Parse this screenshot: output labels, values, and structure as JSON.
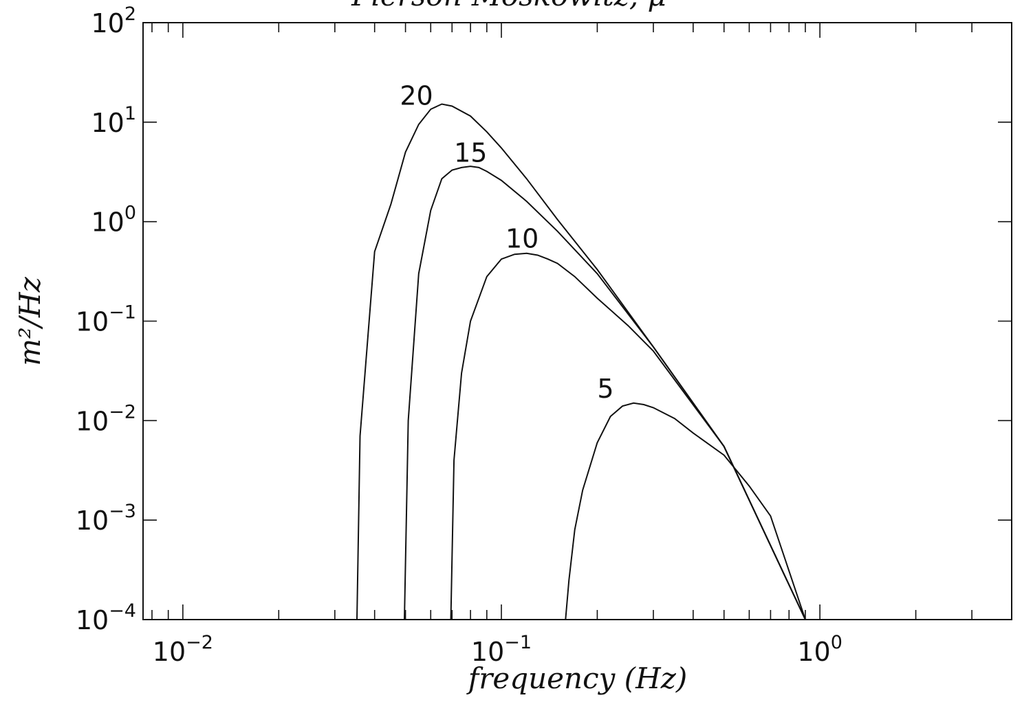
{
  "title_fragment": "Pierson-Moskowitz, μ",
  "chart_data": {
    "type": "line",
    "xlabel": "frequency (Hz)",
    "ylabel": "m²/Hz",
    "xscale": "log",
    "yscale": "log",
    "xlim": [
      0.0075,
      4.0
    ],
    "ylim": [
      0.0001,
      100
    ],
    "x_tick_labels": [
      {
        "value": 0.01,
        "mantissa": "10",
        "exp": "−2"
      },
      {
        "value": 0.1,
        "mantissa": "10",
        "exp": "−1"
      },
      {
        "value": 1,
        "mantissa": "10",
        "exp": "0"
      }
    ],
    "y_tick_labels": [
      {
        "value": 100,
        "mantissa": "10",
        "exp": "2"
      },
      {
        "value": 10,
        "mantissa": "10",
        "exp": "1"
      },
      {
        "value": 1,
        "mantissa": "10",
        "exp": "0"
      },
      {
        "value": 0.1,
        "mantissa": "10",
        "exp": "−1"
      },
      {
        "value": 0.01,
        "mantissa": "10",
        "exp": "−2"
      },
      {
        "value": 0.001,
        "mantissa": "10",
        "exp": "−3"
      },
      {
        "value": 0.0001,
        "mantissa": "10",
        "exp": "−4"
      }
    ],
    "grid": false,
    "series": [
      {
        "name": "20",
        "label_at": [
          0.048,
          15
        ],
        "x": [
          0.0352,
          0.036,
          0.04,
          0.045,
          0.05,
          0.055,
          0.06,
          0.065,
          0.07,
          0.08,
          0.09,
          0.1,
          0.12,
          0.15,
          0.2,
          0.3,
          0.5,
          0.9
        ],
        "y": [
          0.0001,
          0.007,
          0.5,
          1.5,
          5.0,
          9.5,
          13.5,
          15.2,
          14.5,
          11.5,
          8.0,
          5.5,
          2.7,
          1.05,
          0.33,
          0.055,
          0.0055,
          0.0001
        ]
      },
      {
        "name": "15",
        "label_at": [
          0.071,
          4.0
        ],
        "x": [
          0.0496,
          0.051,
          0.055,
          0.06,
          0.065,
          0.07,
          0.075,
          0.08,
          0.085,
          0.09,
          0.1,
          0.12,
          0.15,
          0.2,
          0.3,
          0.5,
          0.9
        ],
        "y": [
          0.0001,
          0.01,
          0.3,
          1.3,
          2.7,
          3.3,
          3.5,
          3.6,
          3.5,
          3.2,
          2.6,
          1.6,
          0.8,
          0.3,
          0.055,
          0.0055,
          0.0001
        ]
      },
      {
        "name": "10",
        "label_at": [
          0.103,
          0.55
        ],
        "x": [
          0.0694,
          0.071,
          0.075,
          0.08,
          0.09,
          0.1,
          0.11,
          0.12,
          0.13,
          0.14,
          0.15,
          0.17,
          0.2,
          0.25,
          0.3,
          0.5,
          0.9
        ],
        "y": [
          0.0001,
          0.004,
          0.03,
          0.1,
          0.28,
          0.42,
          0.47,
          0.48,
          0.46,
          0.42,
          0.38,
          0.28,
          0.17,
          0.09,
          0.05,
          0.0055,
          0.0001
        ]
      },
      {
        "name": "5",
        "label_at": [
          0.2,
          0.017
        ],
        "x": [
          0.159,
          0.163,
          0.17,
          0.18,
          0.2,
          0.22,
          0.24,
          0.26,
          0.28,
          0.3,
          0.35,
          0.4,
          0.5,
          0.6,
          0.7,
          0.9
        ],
        "y": [
          0.0001,
          0.00025,
          0.0008,
          0.002,
          0.006,
          0.011,
          0.014,
          0.015,
          0.0145,
          0.0135,
          0.0105,
          0.0075,
          0.0045,
          0.0022,
          0.0011,
          0.0001
        ]
      }
    ]
  }
}
